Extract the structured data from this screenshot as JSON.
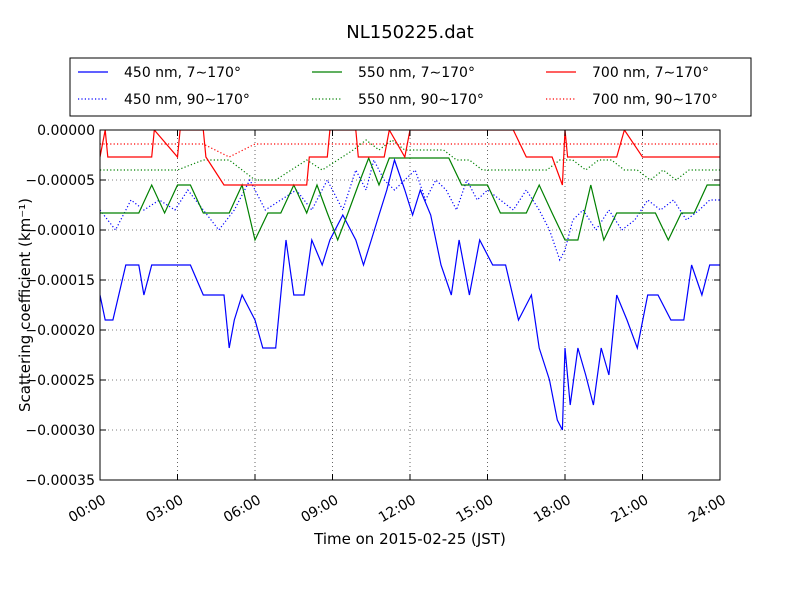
{
  "chart_data": {
    "type": "line",
    "title": "NL150225.dat",
    "xlabel": "Time on 2015-02-25 (JST)",
    "ylabel": "Scattering coefficient (km⁻¹)",
    "xlim": [
      0,
      24
    ],
    "ylim": [
      -0.00035,
      0.0
    ],
    "x_ticks": [
      {
        "value": 0,
        "label": "00:00"
      },
      {
        "value": 3,
        "label": "03:00"
      },
      {
        "value": 6,
        "label": "06:00"
      },
      {
        "value": 9,
        "label": "09:00"
      },
      {
        "value": 12,
        "label": "12:00"
      },
      {
        "value": 15,
        "label": "15:00"
      },
      {
        "value": 18,
        "label": "18:00"
      },
      {
        "value": 21,
        "label": "21:00"
      },
      {
        "value": 24,
        "label": "24:00"
      }
    ],
    "y_ticks": [
      {
        "value": 0.0,
        "label": "0.00000"
      },
      {
        "value": -5e-05,
        "label": "−0.00005"
      },
      {
        "value": -0.0001,
        "label": "−0.00010"
      },
      {
        "value": -0.00015,
        "label": "−0.00015"
      },
      {
        "value": -0.0002,
        "label": "−0.00020"
      },
      {
        "value": -0.00025,
        "label": "−0.00025"
      },
      {
        "value": -0.0003,
        "label": "−0.00030"
      },
      {
        "value": -0.00035,
        "label": "−0.00035"
      }
    ],
    "grid": true,
    "legend_position": "top",
    "series": [
      {
        "name": "450 nm, 7∼170°",
        "color": "#0000ff",
        "style": "solid",
        "x": [
          0.0,
          0.2,
          0.5,
          1.0,
          1.5,
          1.7,
          2.0,
          2.3,
          2.6,
          2.8,
          3.1,
          3.5,
          4.0,
          4.3,
          4.8,
          5.0,
          5.2,
          5.5,
          6.0,
          6.3,
          6.8,
          7.2,
          7.5,
          7.9,
          8.2,
          8.6,
          8.9,
          9.4,
          9.9,
          10.2,
          10.5,
          10.8,
          11.1,
          11.4,
          11.8,
          12.1,
          12.4,
          12.8,
          13.2,
          13.6,
          13.9,
          14.3,
          14.7,
          15.2,
          15.7,
          16.2,
          16.7,
          17.0,
          17.4,
          17.7,
          17.9,
          18.0,
          18.2,
          18.5,
          18.8,
          19.1,
          19.4,
          19.7,
          20.0,
          20.4,
          20.8,
          21.2,
          21.6,
          22.1,
          22.6,
          22.9,
          23.3,
          23.6,
          24.0
        ],
        "y": [
          -0.000165,
          -0.00019,
          -0.00019,
          -0.000135,
          -0.000135,
          -0.000165,
          -0.000135,
          -0.000135,
          -0.000135,
          -0.000135,
          -0.000135,
          -0.000135,
          -0.000165,
          -0.000165,
          -0.000165,
          -0.000218,
          -0.00019,
          -0.000165,
          -0.00019,
          -0.000218,
          -0.000218,
          -0.00011,
          -0.000165,
          -0.000165,
          -0.00011,
          -0.000135,
          -0.00011,
          -8.5e-05,
          -0.00011,
          -0.000135,
          -0.00011,
          -8.5e-05,
          -6e-05,
          -3e-05,
          -6e-05,
          -8.5e-05,
          -6e-05,
          -8.5e-05,
          -0.000135,
          -0.000165,
          -0.00011,
          -0.000165,
          -0.00011,
          -0.000135,
          -0.000135,
          -0.00019,
          -0.000165,
          -0.000218,
          -0.00025,
          -0.00029,
          -0.0003,
          -0.000218,
          -0.000275,
          -0.000218,
          -0.000245,
          -0.000275,
          -0.000218,
          -0.000245,
          -0.000165,
          -0.00019,
          -0.000218,
          -0.000165,
          -0.000165,
          -0.00019,
          -0.00019,
          -0.000135,
          -0.000165,
          -0.000135,
          -0.000135
        ]
      },
      {
        "name": "450 nm, 90∼170°",
        "color": "#0000ff",
        "style": "dotted",
        "x": [
          0.0,
          0.6,
          1.2,
          1.7,
          2.3,
          2.9,
          3.4,
          4.0,
          4.6,
          5.2,
          5.8,
          6.4,
          7.0,
          7.6,
          8.2,
          8.8,
          9.4,
          9.9,
          10.3,
          10.6,
          11.0,
          11.4,
          11.8,
          12.2,
          12.6,
          13.0,
          13.4,
          13.8,
          14.2,
          14.6,
          15.0,
          15.5,
          16.0,
          16.5,
          17.0,
          17.4,
          17.8,
          18.0,
          18.3,
          18.7,
          19.2,
          19.7,
          20.2,
          20.7,
          21.2,
          21.7,
          22.2,
          22.7,
          23.2,
          23.6,
          24.0
        ],
        "y": [
          -8e-05,
          -0.0001,
          -7e-05,
          -8e-05,
          -7e-05,
          -8e-05,
          -6e-05,
          -8e-05,
          -0.0001,
          -8e-05,
          -5e-05,
          -8e-05,
          -7e-05,
          -6e-05,
          -8e-05,
          -5e-05,
          -8e-05,
          -4e-05,
          -6e-05,
          -3e-05,
          -5e-05,
          -6e-05,
          -5e-05,
          -4e-05,
          -7e-05,
          -5e-05,
          -6e-05,
          -8e-05,
          -5e-05,
          -7e-05,
          -6e-05,
          -7e-05,
          -8e-05,
          -6e-05,
          -8e-05,
          -0.0001,
          -0.00013,
          -0.00012,
          -9e-05,
          -8e-05,
          -0.0001,
          -8e-05,
          -0.0001,
          -9e-05,
          -7e-05,
          -8e-05,
          -7e-05,
          -9e-05,
          -8e-05,
          -7e-05,
          -7e-05
        ]
      },
      {
        "name": "550 nm, 7∼170°",
        "color": "#008000",
        "style": "solid",
        "x": [
          0.0,
          0.5,
          1.0,
          1.5,
          2.0,
          2.5,
          3.0,
          3.5,
          4.0,
          4.5,
          5.0,
          5.5,
          6.0,
          6.5,
          7.0,
          7.5,
          8.0,
          8.4,
          8.8,
          9.2,
          9.6,
          10.0,
          10.4,
          10.8,
          11.2,
          11.6,
          12.0,
          12.5,
          13.0,
          13.5,
          14.0,
          14.5,
          15.0,
          15.5,
          16.0,
          16.5,
          17.0,
          17.5,
          18.0,
          18.5,
          19.0,
          19.5,
          20.0,
          20.5,
          21.0,
          21.5,
          22.0,
          22.5,
          23.0,
          23.5,
          24.0
        ],
        "y": [
          -8.3e-05,
          -8.3e-05,
          -8.3e-05,
          -8.3e-05,
          -5.5e-05,
          -8.3e-05,
          -5.5e-05,
          -5.5e-05,
          -8.3e-05,
          -8.3e-05,
          -8.3e-05,
          -5.5e-05,
          -0.00011,
          -8.3e-05,
          -8.3e-05,
          -5.5e-05,
          -8.3e-05,
          -5.5e-05,
          -8.3e-05,
          -0.00011,
          -8.3e-05,
          -5.5e-05,
          -2.8e-05,
          -5.5e-05,
          -2.8e-05,
          -2.8e-05,
          -2.8e-05,
          -2.8e-05,
          -2.8e-05,
          -2.8e-05,
          -5.5e-05,
          -5.5e-05,
          -5.5e-05,
          -8.3e-05,
          -8.3e-05,
          -8.3e-05,
          -5.5e-05,
          -8.3e-05,
          -0.00011,
          -0.00011,
          -5.5e-05,
          -0.00011,
          -8.3e-05,
          -8.3e-05,
          -8.3e-05,
          -8.3e-05,
          -0.00011,
          -8.3e-05,
          -8.3e-05,
          -5.5e-05,
          -5.5e-05
        ]
      },
      {
        "name": "550 nm, 90∼170°",
        "color": "#008000",
        "style": "dotted",
        "x": [
          0.0,
          1.0,
          2.0,
          3.0,
          4.0,
          5.0,
          6.0,
          6.8,
          7.4,
          8.0,
          8.6,
          9.2,
          9.8,
          10.3,
          10.8,
          11.3,
          11.8,
          12.3,
          12.8,
          13.3,
          13.8,
          14.3,
          14.8,
          15.3,
          15.8,
          16.3,
          16.8,
          17.3,
          17.8,
          18.3,
          18.8,
          19.3,
          19.8,
          20.3,
          20.8,
          21.3,
          21.8,
          22.3,
          22.8,
          23.3,
          24.0
        ],
        "y": [
          -4e-05,
          -4e-05,
          -4e-05,
          -4e-05,
          -3e-05,
          -3e-05,
          -5e-05,
          -5e-05,
          -4e-05,
          -3e-05,
          -4e-05,
          -3e-05,
          -2e-05,
          -1e-05,
          -2e-05,
          -1e-05,
          -2e-05,
          -2e-05,
          -2e-05,
          -2e-05,
          -3e-05,
          -3e-05,
          -4e-05,
          -4e-05,
          -4e-05,
          -4e-05,
          -4e-05,
          -4e-05,
          -3e-05,
          -3e-05,
          -4e-05,
          -3e-05,
          -3e-05,
          -4e-05,
          -4e-05,
          -5e-05,
          -4e-05,
          -5e-05,
          -4e-05,
          -4e-05,
          -4e-05
        ]
      },
      {
        "name": "700 nm, 7∼170°",
        "color": "#ff0000",
        "style": "solid",
        "x": [
          0.0,
          0.2,
          0.3,
          2.0,
          2.1,
          3.0,
          3.1,
          4.0,
          4.1,
          4.8,
          5.2,
          6.0,
          7.0,
          8.0,
          8.1,
          8.8,
          8.9,
          9.9,
          10.0,
          11.0,
          11.2,
          11.8,
          12.0,
          14.0,
          14.5,
          15.0,
          16.0,
          16.5,
          16.8,
          17.5,
          17.9,
          18.0,
          18.1,
          19.0,
          20.0,
          20.3,
          21.0,
          22.0,
          23.0,
          24.0
        ],
        "y": [
          -2.7e-05,
          0.0,
          -2.7e-05,
          -2.7e-05,
          0.0,
          -2.7e-05,
          0.0,
          0.0,
          -2.7e-05,
          -5.5e-05,
          -5.5e-05,
          -5.5e-05,
          -5.5e-05,
          -5.5e-05,
          -2.7e-05,
          -2.7e-05,
          0.0,
          0.0,
          -2.7e-05,
          -2.7e-05,
          0.0,
          -2.7e-05,
          0.0,
          0.0,
          0.0,
          0.0,
          0.0,
          -2.7e-05,
          -2.7e-05,
          -2.7e-05,
          -5.5e-05,
          0.0,
          -2.7e-05,
          -2.7e-05,
          -2.7e-05,
          0.0,
          -2.7e-05,
          -2.7e-05,
          -2.7e-05,
          -2.7e-05
        ]
      },
      {
        "name": "700 nm, 90∼170°",
        "color": "#ff0000",
        "style": "dotted",
        "x": [
          0.0,
          2.0,
          4.0,
          5.0,
          6.0,
          8.0,
          10.0,
          12.0,
          14.0,
          16.0,
          18.0,
          20.0,
          22.0,
          24.0
        ],
        "y": [
          -1.4e-05,
          -1.4e-05,
          -1.4e-05,
          -2.7e-05,
          -1.4e-05,
          -1.4e-05,
          -1.4e-05,
          -1.4e-05,
          -1.4e-05,
          -1.4e-05,
          -1.4e-05,
          -1.4e-05,
          -1.4e-05,
          -1.4e-05
        ]
      }
    ]
  }
}
